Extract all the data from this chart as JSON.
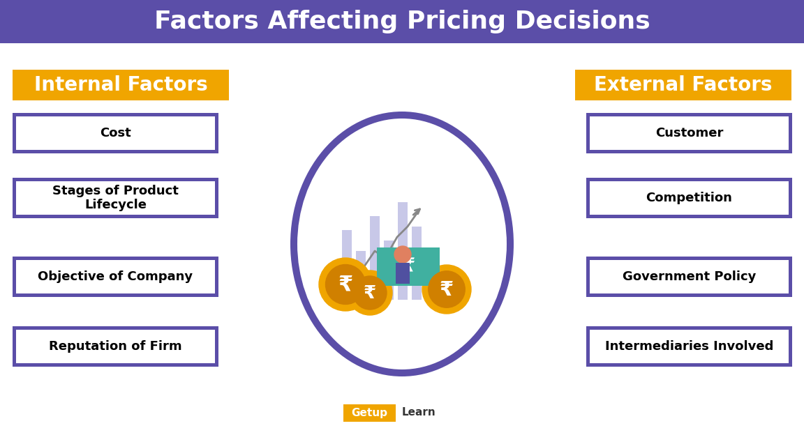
{
  "title": "Factors Affecting Pricing Decisions",
  "title_bg_color": "#5b4ea8",
  "title_text_color": "#ffffff",
  "header_bg_color": "#f0a500",
  "header_text_color": "#ffffff",
  "box_border_color": "#5b4ea8",
  "box_bg_color": "#ffffff",
  "box_text_color": "#000000",
  "main_bg_color": "#ffffff",
  "internal_header": "Internal Factors",
  "external_header": "External Factors",
  "internal_items": [
    "Cost",
    "Stages of Product\nLifecycle",
    "Objective of Company",
    "Reputation of Firm"
  ],
  "external_items": [
    "Customer",
    "Competition",
    "Government Policy",
    "Intermediaries Involved"
  ],
  "circle_color": "#5b4ea8",
  "watermark_text": "Getup",
  "watermark_text2": "Learn",
  "watermark_bg": "#f0a500",
  "watermark_text_color": "#ffffff",
  "watermark_text2_color": "#000000"
}
